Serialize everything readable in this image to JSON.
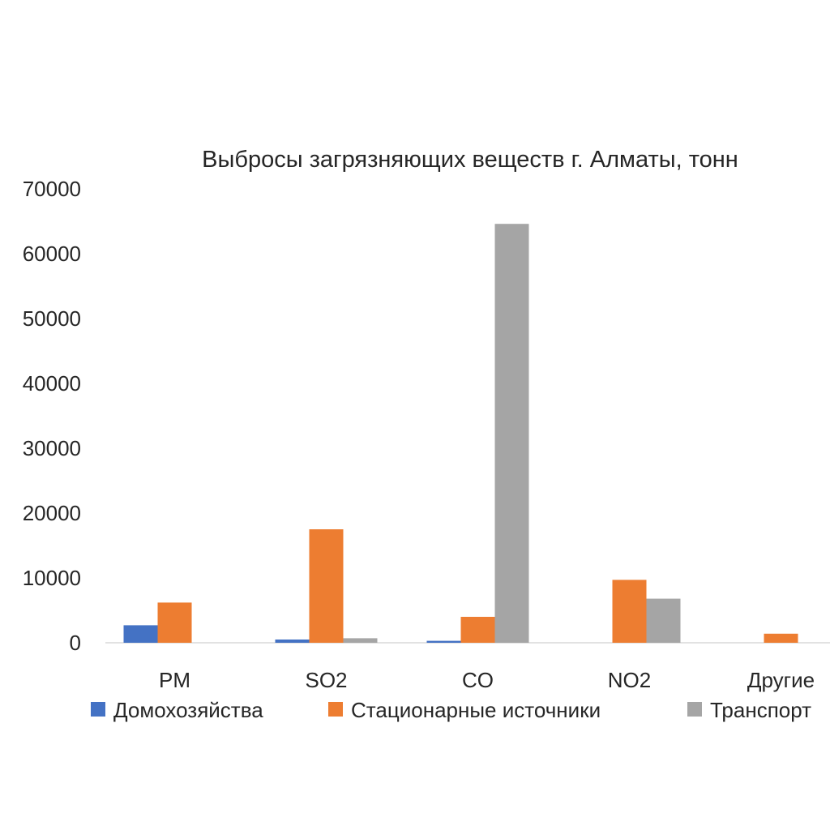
{
  "chart_data": {
    "type": "bar",
    "title": "Выбросы загрязняющих веществ г. Алматы, тонн",
    "xlabel": "",
    "ylabel": "",
    "categories": [
      "PM",
      "SO2",
      "CO",
      "NO2",
      "Другие"
    ],
    "ylim": [
      0,
      70000
    ],
    "yticks": [
      0,
      10000,
      20000,
      30000,
      40000,
      50000,
      60000,
      70000
    ],
    "grid": false,
    "legend_position": "bottom",
    "series": [
      {
        "name": "Домохозяйства",
        "color": "#4472C4",
        "values": [
          2700,
          500,
          300,
          0,
          0
        ]
      },
      {
        "name": "Стационарные источники",
        "color": "#ED7D31",
        "values": [
          6200,
          17500,
          4000,
          9700,
          1400
        ]
      },
      {
        "name": "Транспорт",
        "color": "#A5A5A5",
        "values": [
          0,
          700,
          64600,
          6800,
          0
        ]
      }
    ]
  }
}
